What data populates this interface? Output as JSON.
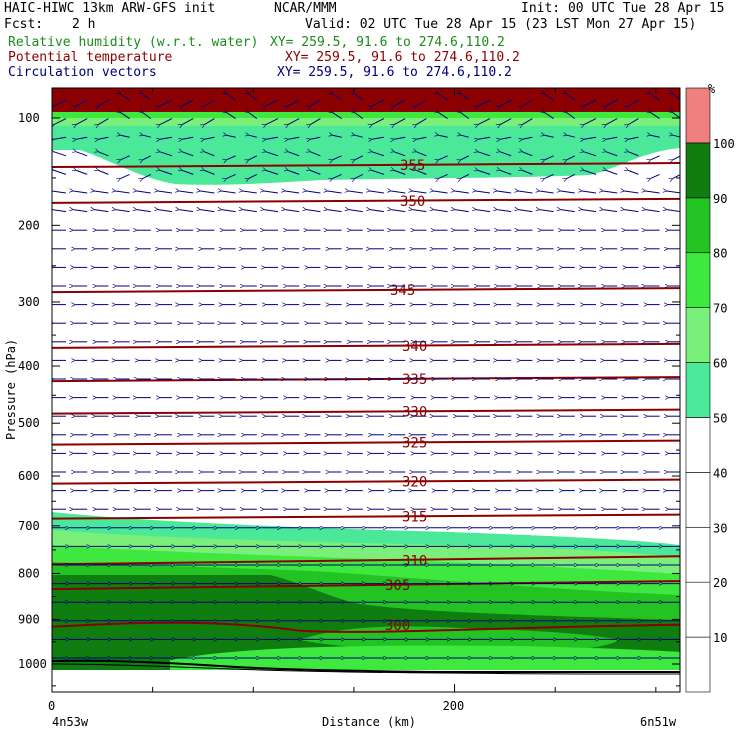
{
  "header": {
    "model_line": "HAIC-HIWC 13km ARW-GFS init",
    "org": "NCAR/MMM",
    "init": "Init: 00 UTC Tue 28 Apr 15",
    "fcst_label": "Fcst:",
    "fcst_value": "2 h",
    "valid": "Valid: 02 UTC Tue 28 Apr 15 (23 LST Mon 27 Apr 15)",
    "fields": [
      {
        "name": "Relative humidity (w.r.t. water)",
        "xy": "XY= 259.5, 91.6 to 274.6,110.2",
        "color": "#1a8c1a"
      },
      {
        "name": "Potential temperature",
        "xy": "XY= 259.5, 91.6 to 274.6,110.2",
        "color": "#8b0000"
      },
      {
        "name": "Circulation vectors",
        "xy": "XY= 259.5, 91.6 to 274.6,110.2",
        "color": "#00007a"
      }
    ]
  },
  "chart_data": {
    "type": "heatmap",
    "title": "HAIC-HIWC 13km ARW-GFS init",
    "xlabel": "Distance (km)",
    "ylabel": "Pressure (hPa)",
    "x_ticks": [
      "0",
      "200"
    ],
    "x_end_labels": {
      "left": "4n53w",
      "right": "6n51w"
    },
    "xlim": [
      0,
      312
    ],
    "ylim": [
      50,
      1050
    ],
    "y_scale": "log",
    "y_ticks": [
      100,
      200,
      300,
      400,
      500,
      600,
      700,
      800,
      900,
      1000
    ],
    "colorbar": {
      "unit": "%",
      "levels": [
        0,
        10,
        20,
        30,
        40,
        50,
        60,
        70,
        80,
        90,
        100
      ],
      "tick_labels": [
        "10",
        "20",
        "30",
        "40",
        "50",
        "60",
        "70",
        "80",
        "90",
        "100"
      ],
      "colors": {
        "0-50": "#ffffff",
        "50-60": "#4be89a",
        "60-70": "#7af07a",
        "70-80": "#3ee83e",
        "80-90": "#22c322",
        "90-100": "#0f7d0f",
        "100+": "#f08080"
      }
    },
    "theta_contours": [
      {
        "label": "355",
        "pressure": 138
      },
      {
        "label": "350",
        "pressure": 173
      },
      {
        "label": "345",
        "pressure": 283
      },
      {
        "label": "340",
        "pressure": 367
      },
      {
        "label": "335",
        "pressure": 422
      },
      {
        "label": "330",
        "pressure": 479
      },
      {
        "label": "325",
        "pressure": 536
      },
      {
        "label": "320",
        "pressure": 611
      },
      {
        "label": "315",
        "pressure": 681
      },
      {
        "label": "310",
        "pressure": 772
      },
      {
        "label": "305",
        "pressure": 825
      },
      {
        "label": "300",
        "pressure": 912
      }
    ],
    "wind_flow": "easterly (right-to-left) through most of the column; upper levels above 200 hPa show curved northwest-to-southwest arcs"
  }
}
